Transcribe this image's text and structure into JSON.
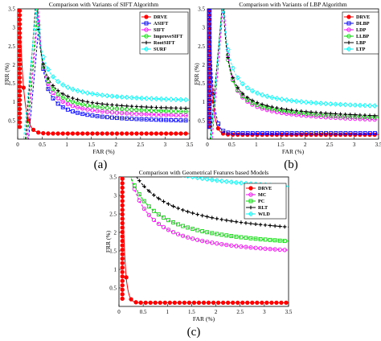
{
  "chart_data": [
    {
      "type": "line",
      "panel_label": "(a)",
      "title": "Comparison with Variants of SIFT Algorithm",
      "xlabel": "FAR (%)",
      "ylabel": "FRR (%)",
      "xlim": [
        0,
        3.5
      ],
      "ylim": [
        0,
        3.5
      ],
      "x_ticks": [
        "0",
        "0.5",
        "1",
        "1.5",
        "2",
        "2.5",
        "3",
        "3.5"
      ],
      "y_ticks": [
        "0.5",
        "1",
        "1.5",
        "2",
        "2.5",
        "3",
        "3.5"
      ],
      "legend_position": "top-right",
      "series": [
        {
          "name": "DRVE",
          "color": "#ff0000",
          "marker": "circle",
          "curve": {
            "kind": "L",
            "x0": 0.04,
            "y0": 3.5,
            "floor": 0.15,
            "knee": 0.08
          }
        },
        {
          "name": "ASIFT",
          "color": "#0000ff",
          "marker": "square",
          "curve": {
            "kind": "H",
            "a": 0.25,
            "b": 0.35,
            "c": 0.42
          }
        },
        {
          "name": "SIFT",
          "color": "#ff00ff",
          "marker": "circle",
          "curve": {
            "kind": "H",
            "a": 0.27,
            "b": 0.33,
            "c": 0.55
          }
        },
        {
          "name": "ImproveSIFT",
          "color": "#00dd00",
          "marker": "circle",
          "curve": {
            "kind": "H",
            "a": 0.29,
            "b": 0.3,
            "c": 0.65
          }
        },
        {
          "name": "RootSIFT",
          "color": "#000000",
          "marker": "plus",
          "curve": {
            "kind": "H",
            "a": 0.31,
            "b": 0.28,
            "c": 0.73
          }
        },
        {
          "name": "SURF",
          "color": "#00ffff",
          "marker": "diamond",
          "curve": {
            "kind": "H",
            "a": 0.34,
            "b": 0.25,
            "c": 0.95
          }
        }
      ]
    },
    {
      "type": "line",
      "panel_label": "(b)",
      "title": "Comparison with Variants of LBP Algorithm",
      "xlabel": "FAR (%)",
      "ylabel": "FRR (%)",
      "xlim": [
        0,
        3.5
      ],
      "ylim": [
        0,
        3.5
      ],
      "x_ticks": [
        "0",
        "0.5",
        "1",
        "1.5",
        "2",
        "2.5",
        "3",
        "3.5"
      ],
      "y_ticks": [
        "0.5",
        "1",
        "1.5",
        "2",
        "2.5",
        "3",
        "3.5"
      ],
      "legend_position": "top-right",
      "series": [
        {
          "name": "DRVE",
          "color": "#ff0000",
          "marker": "circle",
          "curve": {
            "kind": "L",
            "x0": 0.04,
            "y0": 3.5,
            "floor": 0.12,
            "knee": 0.06
          }
        },
        {
          "name": "DLBP",
          "color": "#0000ff",
          "marker": "square",
          "curve": {
            "kind": "L",
            "x0": 0.045,
            "y0": 3.5,
            "floor": 0.16,
            "knee": 0.07
          }
        },
        {
          "name": "LDP",
          "color": "#ff00ff",
          "marker": "circle",
          "curve": {
            "kind": "H",
            "a": 0.3,
            "b": 0.25,
            "c": 0.5,
            "s": -0.02
          }
        },
        {
          "name": "LLBP",
          "color": "#00dd00",
          "marker": "circle",
          "curve": {
            "kind": "H",
            "a": 0.3,
            "b": 0.23,
            "c": 0.56,
            "s": -0.02
          }
        },
        {
          "name": "LBP",
          "color": "#000000",
          "marker": "plus",
          "curve": {
            "kind": "H",
            "a": 0.32,
            "b": 0.22,
            "c": 0.6,
            "s": -0.02
          }
        },
        {
          "name": "LTP",
          "color": "#00ffff",
          "marker": "diamond",
          "curve": {
            "kind": "H",
            "a": 0.35,
            "b": 0.2,
            "c": 0.82,
            "s": -0.01
          }
        }
      ]
    },
    {
      "type": "line",
      "panel_label": "(c)",
      "title": "Comparison with Geometrical Features based Models",
      "xlabel": "FAR (%)",
      "ylabel": "FRR (%)",
      "xlim": [
        0,
        3.5
      ],
      "ylim": [
        0,
        3.5
      ],
      "x_ticks": [
        "0",
        "0.5",
        "1",
        "1.5",
        "2",
        "2.5",
        "3",
        "3.5"
      ],
      "y_ticks": [
        "0.5",
        "1",
        "1.5",
        "2",
        "2.5",
        "3",
        "3.5"
      ],
      "legend_position": "top-right",
      "series": [
        {
          "name": "DRVE",
          "color": "#ff0000",
          "marker": "circle",
          "curve": {
            "kind": "L",
            "x0": 0.07,
            "y0": 3.5,
            "floor": 0.1,
            "knee": 0.05
          }
        },
        {
          "name": "MC",
          "color": "#ff00ff",
          "marker": "circle",
          "curve": {
            "kind": "H",
            "a": 1.0,
            "b": -0.2,
            "c": 1.25
          }
        },
        {
          "name": "PC",
          "color": "#00dd00",
          "marker": "square",
          "curve": {
            "kind": "H",
            "a": 1.2,
            "b": -0.34,
            "c": 1.45
          }
        },
        {
          "name": "RLT",
          "color": "#000000",
          "marker": "plus",
          "curve": {
            "kind": "H",
            "a": 1.6,
            "b": -0.55,
            "c": 1.75
          }
        },
        {
          "name": "WLD",
          "color": "#00ffff",
          "marker": "diamond",
          "curve": {
            "kind": "H",
            "a": 1.6,
            "b": -1.15,
            "c": 2.9
          }
        }
      ]
    }
  ]
}
